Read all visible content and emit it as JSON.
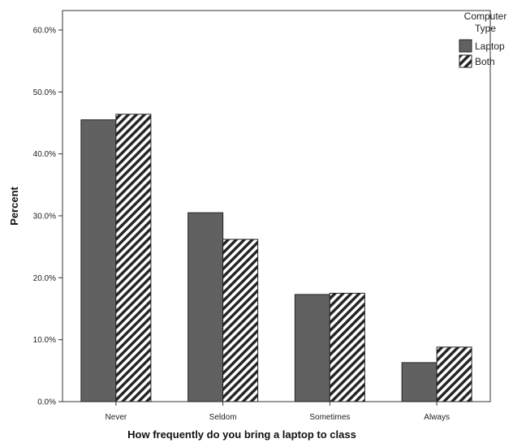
{
  "chart_data": {
    "type": "bar",
    "title": "",
    "xlabel": "How frequently do you bring a laptop to class",
    "ylabel": "Percent",
    "categories": [
      "Never",
      "Seldom",
      "Sometimes",
      "Always"
    ],
    "series": [
      {
        "name": "Laptop",
        "values": [
          45.5,
          30.5,
          17.3,
          6.3
        ],
        "fill": "solid",
        "color": "#616161"
      },
      {
        "name": "Both",
        "values": [
          46.4,
          26.2,
          17.5,
          8.8
        ],
        "fill": "hatched",
        "color": "#222222"
      }
    ],
    "ylim": [
      0,
      63
    ],
    "yticks": [
      "0.0%",
      "10.0%",
      "20.0%",
      "30.0%",
      "40.0%",
      "50.0%",
      "60.0%"
    ],
    "ytick_values": [
      0,
      10,
      20,
      30,
      40,
      50,
      60
    ],
    "grid": false,
    "legend": {
      "title": "Computer Type",
      "title_lines": [
        "Computer",
        "Type"
      ],
      "placement": "top-right, outside plot"
    }
  }
}
